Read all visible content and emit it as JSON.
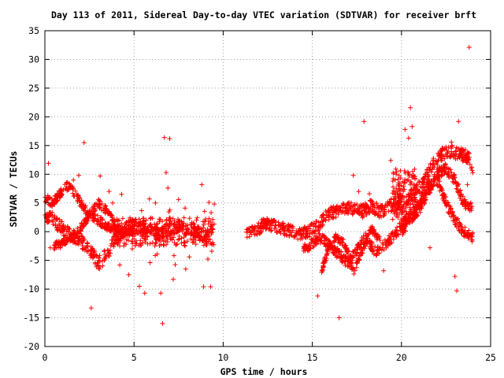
{
  "chart_data": {
    "type": "scatter",
    "title": "Day 113 of 2011, Sidereal Day-to-day VTEC variation (SDTVAR) for receiver brft",
    "xlabel": "GPS time / hours",
    "ylabel": "SDTVAR / TECUs",
    "xlim": [
      0,
      25
    ],
    "ylim": [
      -20,
      35
    ],
    "xticks": [
      "0",
      "5",
      "10",
      "15",
      "20",
      "25"
    ],
    "yticks": [
      "-20",
      "-15",
      "-10",
      "-5",
      "0",
      "5",
      "10",
      "15",
      "20",
      "25",
      "30",
      "35"
    ],
    "grid": true,
    "marker": "+",
    "marker_color": "#ff0000",
    "series": [
      {
        "name": "",
        "band_segments": [
          {
            "x": [
              0.0,
              0.5,
              1.0,
              1.5,
              2.0,
              2.5,
              3.0,
              3.5,
              4.0,
              4.5,
              5.0,
              5.5,
              6.0,
              6.5,
              7.0,
              7.5,
              8.0,
              8.5,
              9.0,
              9.4
            ],
            "y": [
              3.0,
              2.0,
              0.5,
              -0.5,
              -1.5,
              -3.0,
              -5.5,
              -4.0,
              -1.0,
              0.5,
              1.0,
              0.5,
              0.0,
              -0.5,
              0.5,
              1.0,
              0.5,
              0.0,
              -1.0,
              0.0
            ],
            "spread": 2.4
          },
          {
            "x": [
              0.0,
              0.4,
              0.8,
              1.2,
              1.6,
              2.0,
              2.5,
              3.0,
              3.5,
              4.0,
              4.5,
              5.0
            ],
            "y": [
              6.0,
              5.0,
              6.5,
              8.0,
              7.0,
              5.0,
              3.0,
              2.0,
              1.0,
              0.5,
              0.0,
              0.0
            ],
            "spread": 1.6
          },
          {
            "x": [
              0.5,
              1.0,
              1.5,
              2.0,
              2.5,
              3.0,
              3.5,
              4.0
            ],
            "y": [
              -2.5,
              -2.0,
              -1.0,
              0.5,
              3.0,
              5.0,
              3.5,
              1.0
            ],
            "spread": 1.4
          },
          {
            "x": [
              11.3,
              11.8,
              12.3,
              12.8,
              13.3,
              13.8,
              14.3,
              14.8,
              15.3,
              15.8,
              16.3,
              16.8,
              17.3,
              17.8,
              18.3,
              18.8,
              19.3,
              19.8,
              20.3,
              20.8,
              21.3,
              21.8,
              22.3,
              22.8,
              23.3,
              23.8,
              24.0
            ],
            "y": [
              0.0,
              0.0,
              1.5,
              1.0,
              0.5,
              0.0,
              -0.5,
              0.0,
              1.0,
              3.0,
              3.5,
              4.0,
              4.0,
              3.5,
              4.5,
              3.5,
              4.5,
              5.0,
              5.5,
              7.0,
              9.0,
              12.0,
              13.5,
              14.0,
              13.5,
              13.0,
              11.0
            ],
            "spread": 2.2
          },
          {
            "x": [
              14.5,
              15.0,
              15.5,
              16.0,
              16.5,
              17.0,
              17.5,
              18.0,
              18.5,
              19.0,
              19.5,
              20.0,
              20.5,
              21.0,
              21.5,
              22.0,
              22.5,
              23.0,
              23.5,
              24.0
            ],
            "y": [
              -3.0,
              -2.0,
              -1.0,
              -2.5,
              -4.0,
              -5.5,
              -3.0,
              -1.0,
              -3.5,
              -2.5,
              -1.0,
              1.0,
              3.0,
              5.0,
              8.0,
              9.0,
              5.0,
              2.0,
              0.0,
              -1.0
            ],
            "spread": 1.8
          },
          {
            "x": [
              15.5,
              15.9,
              16.3,
              16.8,
              17.3,
              17.8,
              18.3,
              18.8
            ],
            "y": [
              -7.0,
              -3.0,
              -1.0,
              -2.0,
              -7.0,
              -3.5,
              0.5,
              -1.5
            ],
            "spread": 1.2
          },
          {
            "x": [
              20.0,
              20.5,
              21.0,
              21.5,
              22.0,
              22.5,
              23.0,
              23.5,
              24.0
            ],
            "y": [
              0.0,
              2.0,
              4.0,
              7.0,
              10.0,
              11.0,
              9.0,
              5.0,
              4.0
            ],
            "spread": 1.8
          }
        ],
        "scattered_points": [
          {
            "x": 0.2,
            "y": 11.9
          },
          {
            "x": 0.3,
            "y": -2.8
          },
          {
            "x": 1.6,
            "y": 9.0
          },
          {
            "x": 1.9,
            "y": 9.8
          },
          {
            "x": 2.2,
            "y": 15.5
          },
          {
            "x": 2.6,
            "y": -13.3
          },
          {
            "x": 3.1,
            "y": 9.7
          },
          {
            "x": 3.6,
            "y": 7.0
          },
          {
            "x": 3.8,
            "y": 5.0
          },
          {
            "x": 4.2,
            "y": -5.8
          },
          {
            "x": 4.3,
            "y": 6.5
          },
          {
            "x": 4.7,
            "y": -7.5
          },
          {
            "x": 4.9,
            "y": -3.0
          },
          {
            "x": 5.3,
            "y": -9.5
          },
          {
            "x": 5.6,
            "y": -10.7
          },
          {
            "x": 5.9,
            "y": -5.4
          },
          {
            "x": 6.2,
            "y": 5.0
          },
          {
            "x": 6.3,
            "y": -3.9
          },
          {
            "x": 6.5,
            "y": -10.7
          },
          {
            "x": 6.6,
            "y": -16.0
          },
          {
            "x": 6.7,
            "y": 16.4
          },
          {
            "x": 6.8,
            "y": 10.3
          },
          {
            "x": 7.0,
            "y": 16.2
          },
          {
            "x": 6.9,
            "y": 7.6
          },
          {
            "x": 7.2,
            "y": -8.3
          },
          {
            "x": 7.5,
            "y": 5.6
          },
          {
            "x": 7.9,
            "y": -6.5
          },
          {
            "x": 8.1,
            "y": -4.4
          },
          {
            "x": 8.5,
            "y": 2.0
          },
          {
            "x": 8.8,
            "y": 8.2
          },
          {
            "x": 8.9,
            "y": -9.6
          },
          {
            "x": 9.2,
            "y": 5.1
          },
          {
            "x": 9.3,
            "y": -9.6
          },
          {
            "x": 9.5,
            "y": 4.8
          },
          {
            "x": 15.3,
            "y": -11.2
          },
          {
            "x": 16.5,
            "y": -15.0
          },
          {
            "x": 17.3,
            "y": 9.8
          },
          {
            "x": 17.6,
            "y": 7.0
          },
          {
            "x": 17.9,
            "y": 19.2
          },
          {
            "x": 18.2,
            "y": 6.6
          },
          {
            "x": 19.0,
            "y": -6.8
          },
          {
            "x": 19.4,
            "y": 12.4
          },
          {
            "x": 19.6,
            "y": 6.5
          },
          {
            "x": 20.2,
            "y": 17.8
          },
          {
            "x": 20.5,
            "y": 21.6
          },
          {
            "x": 20.6,
            "y": 18.3
          },
          {
            "x": 20.4,
            "y": 16.3
          },
          {
            "x": 21.6,
            "y": -2.8
          },
          {
            "x": 22.8,
            "y": 15.6
          },
          {
            "x": 23.0,
            "y": -7.8
          },
          {
            "x": 23.1,
            "y": -10.3
          },
          {
            "x": 23.2,
            "y": 19.2
          },
          {
            "x": 23.3,
            "y": 7.2
          },
          {
            "x": 23.7,
            "y": 8.2
          },
          {
            "x": 23.8,
            "y": 32.1
          }
        ]
      }
    ]
  }
}
